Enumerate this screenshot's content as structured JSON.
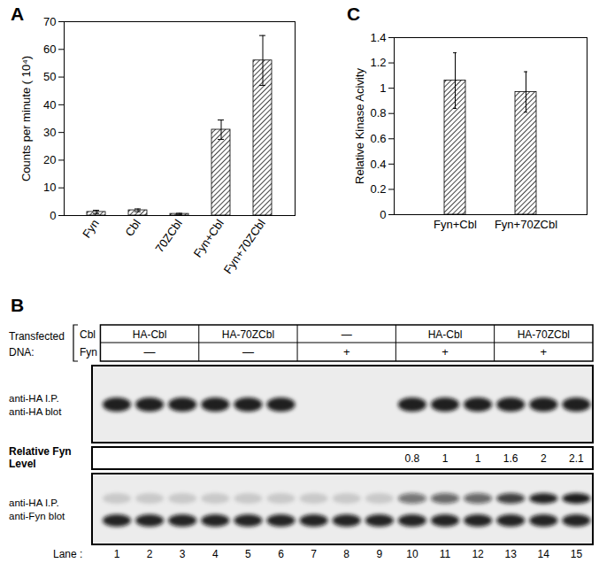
{
  "chart_data": [
    {
      "type": "bar",
      "title": "A",
      "categories": [
        "Fyn",
        "Cbl",
        "70ZCbl",
        "Fyn+Cbl",
        "Fyn+70ZCbl"
      ],
      "values": [
        1.3,
        1.9,
        0.6,
        31,
        56
      ],
      "errors": [
        0.6,
        0.5,
        0.2,
        3.5,
        9
      ],
      "y_label": "Counts per minute ( 10⁴)",
      "ylim": [
        0,
        70
      ],
      "yticks": [
        0,
        10,
        20,
        30,
        40,
        50,
        60,
        70
      ],
      "color": "#444444"
    },
    {
      "type": "bar",
      "title": "C",
      "categories": [
        "Fyn+Cbl",
        "Fyn+70ZCbl"
      ],
      "values": [
        1.06,
        0.97
      ],
      "errors": [
        0.22,
        0.16
      ],
      "y_label": "Relative Kinase Acivity",
      "ylim": [
        0,
        1.4
      ],
      "yticks": [
        0,
        0.2,
        0.4,
        0.6,
        0.8,
        1,
        1.2,
        1.4
      ],
      "color": "#444444"
    }
  ],
  "blot": {
    "title": "B",
    "row_header": [
      "Transfected",
      "DNA:"
    ],
    "row_labels": [
      "Cbl",
      "Fyn"
    ],
    "groups": [
      {
        "Cbl": "HA-Cbl",
        "Fyn": "—",
        "lanes": [
          1,
          2,
          3
        ]
      },
      {
        "Cbl": "HA-70ZCbl",
        "Fyn": "—",
        "lanes": [
          4,
          5,
          6
        ]
      },
      {
        "Cbl": "—",
        "Fyn": "+",
        "lanes": [
          7,
          8,
          9
        ]
      },
      {
        "Cbl": "HA-Cbl",
        "Fyn": "+",
        "lanes": [
          10,
          11,
          12
        ]
      },
      {
        "Cbl": "HA-70ZCbl",
        "Fyn": "+",
        "lanes": [
          13,
          14,
          15
        ]
      }
    ],
    "panels": [
      {
        "label": [
          "anti-HA I.P.",
          "anti-HA blot"
        ]
      },
      {
        "label": [
          "anti-HA I.P.",
          "anti-Fyn blot"
        ]
      }
    ],
    "fyn_level_label": [
      "Relative Fyn",
      "Level"
    ],
    "fyn_levels": [
      {
        "lane": 10,
        "value": 0.8
      },
      {
        "lane": 11,
        "value": 1
      },
      {
        "lane": 12,
        "value": 1
      },
      {
        "lane": 13,
        "value": 1.6
      },
      {
        "lane": 14,
        "value": 2
      },
      {
        "lane": 15,
        "value": 2.1
      }
    ],
    "lane_label": "Lane :",
    "lanes": [
      1,
      2,
      3,
      4,
      5,
      6,
      7,
      8,
      9,
      10,
      11,
      12,
      13,
      14,
      15
    ]
  }
}
